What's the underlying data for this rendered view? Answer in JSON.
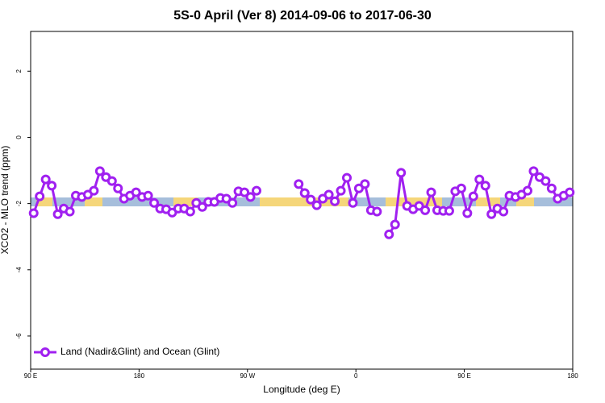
{
  "chart_data": {
    "type": "line",
    "title": "5S-0 April (Ver 8)   2014-09-06 to 2017-06-30",
    "x_label": "Longitude (deg E)",
    "y_label": "XCO2 - MLO trend (ppm)",
    "xlim": [
      90,
      540
    ],
    "xticks": [
      {
        "value": 90,
        "label": "90 E"
      },
      180,
      {
        "value": 270,
        "label": "90 W"
      },
      {
        "value": 360,
        "label": "0"
      },
      {
        "value": 450,
        "label": "90 E"
      },
      {
        "value": 540,
        "label": "180"
      }
    ],
    "ylim": [
      -7,
      3.2
    ],
    "yticks": [
      2,
      0,
      -2,
      -4,
      -6
    ],
    "legend": "bottom-left",
    "x": [
      92.5,
      97.5,
      102.5,
      107.5,
      112.5,
      117.5,
      122.5,
      127.5,
      132.5,
      137.5,
      142.5,
      147.5,
      152.5,
      157.5,
      162.5,
      167.5,
      172.5,
      177.5,
      182.5,
      187.5,
      192.5,
      197.5,
      202.5,
      207.5,
      212.5,
      217.5,
      222.5,
      227.5,
      232.5,
      237.5,
      242.5,
      247.5,
      252.5,
      257.5,
      262.5,
      267.5,
      272.5,
      277.5,
      282.5,
      287.5,
      292.5,
      297.5,
      302.5,
      307.5,
      312.5,
      317.5,
      322.5,
      327.5,
      332.5,
      337.5,
      342.5,
      347.5,
      352.5,
      357.5,
      362.5,
      367.5,
      372.5,
      377.5,
      382.5,
      387.5,
      392.5,
      397.5,
      402.5,
      407.5,
      412.5,
      417.5,
      422.5,
      427.5,
      432.5,
      437.5,
      442.5,
      447.5,
      452.5,
      457.5,
      462.5,
      467.5,
      472.5,
      477.5,
      482.5,
      487.5,
      492.5,
      497.5,
      502.5,
      507.5,
      512.5,
      517.5,
      522.5,
      527.5,
      532.5,
      537.5
    ],
    "series": [
      {
        "name": "Land (Nadir&Glint) and Ocean (Glint)",
        "color": "#a020f0",
        "values": [
          -2.29,
          -1.78,
          -1.27,
          -1.46,
          -2.32,
          -2.15,
          -2.24,
          -1.76,
          -1.8,
          -1.73,
          -1.61,
          -1.02,
          -1.2,
          -1.32,
          -1.54,
          -1.85,
          -1.76,
          -1.66,
          -1.8,
          -1.76,
          -1.98,
          -2.15,
          -2.17,
          -2.27,
          -2.15,
          -2.15,
          -2.24,
          -1.98,
          -2.1,
          -1.95,
          -1.95,
          -1.83,
          -1.85,
          -1.98,
          -1.63,
          -1.66,
          -1.8,
          -1.61,
          null,
          null,
          null,
          null,
          null,
          null,
          -1.41,
          -1.68,
          -1.88,
          -2.05,
          -1.85,
          -1.73,
          -1.93,
          -1.61,
          -1.22,
          -1.98,
          -1.54,
          -1.41,
          -2.2,
          -2.24,
          null,
          -2.93,
          -2.63,
          -1.07,
          -2.07,
          -2.17,
          -2.07,
          -2.2,
          -1.66,
          -2.2,
          -2.22,
          -2.22,
          -1.63,
          -1.54,
          -2.29,
          -1.78,
          -1.27,
          -1.46,
          -2.32,
          -2.15,
          -2.24,
          -1.76,
          -1.8,
          -1.73,
          -1.61,
          -1.02,
          -1.2,
          -1.32,
          -1.54,
          -1.85,
          -1.76,
          -1.66
        ]
      }
    ]
  }
}
